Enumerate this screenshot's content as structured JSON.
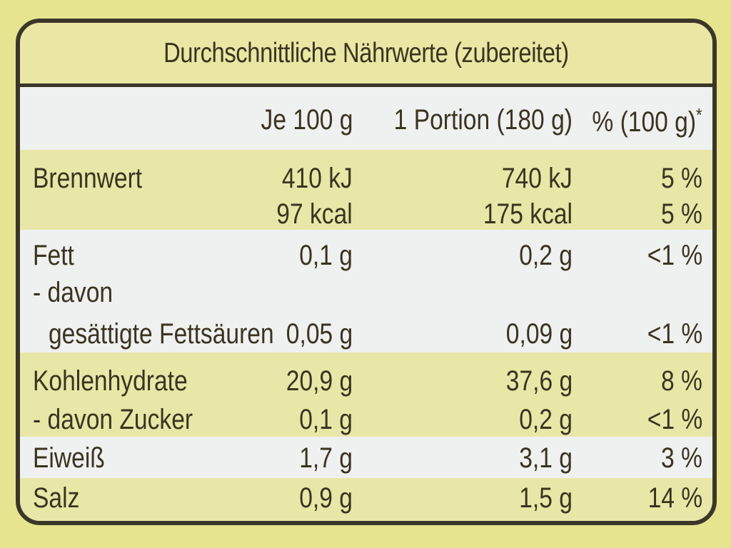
{
  "title": "Durchschnittliche Nährwerte (zubereitet)",
  "header": {
    "label": "",
    "per_100g": "Je 100 g",
    "per_portion": "1 Portion (180 g)",
    "percent": "% (100 g)",
    "percent_mark": "*"
  },
  "rows": [
    {
      "label": "Brennwert",
      "per_100g": "410 kJ",
      "per_portion": "740 kJ",
      "percent": "5 %"
    },
    {
      "label": "",
      "per_100g": "97 kcal",
      "per_portion": "175 kcal",
      "percent": "5 %"
    },
    {
      "label": "Fett",
      "per_100g": "0,1 g",
      "per_portion": "0,2 g",
      "percent": "<1 %"
    },
    {
      "label": "- davon",
      "per_100g": "",
      "per_portion": "",
      "percent": ""
    },
    {
      "label": "gesättigte Fettsäuren",
      "per_100g": "0,05 g",
      "per_portion": "0,09 g",
      "percent": "<1 %"
    },
    {
      "label": "Kohlenhydrate",
      "per_100g": "20,9 g",
      "per_portion": "37,6 g",
      "percent": "8 %"
    },
    {
      "label": "- davon Zucker",
      "per_100g": "0,1 g",
      "per_portion": "0,2 g",
      "percent": "<1 %"
    },
    {
      "label": "Eiweiß",
      "per_100g": "1,7 g",
      "per_portion": "3,1 g",
      "percent": "3 %"
    },
    {
      "label": "Salz",
      "per_100g": "0,9 g",
      "per_portion": "1,5 g",
      "percent": "14 %"
    }
  ],
  "colors": {
    "background": "#e6e48f",
    "band_yellow": "#e8e7a7",
    "band_white": "#eff0f0",
    "border": "#3c3628",
    "text": "#3a3420"
  }
}
